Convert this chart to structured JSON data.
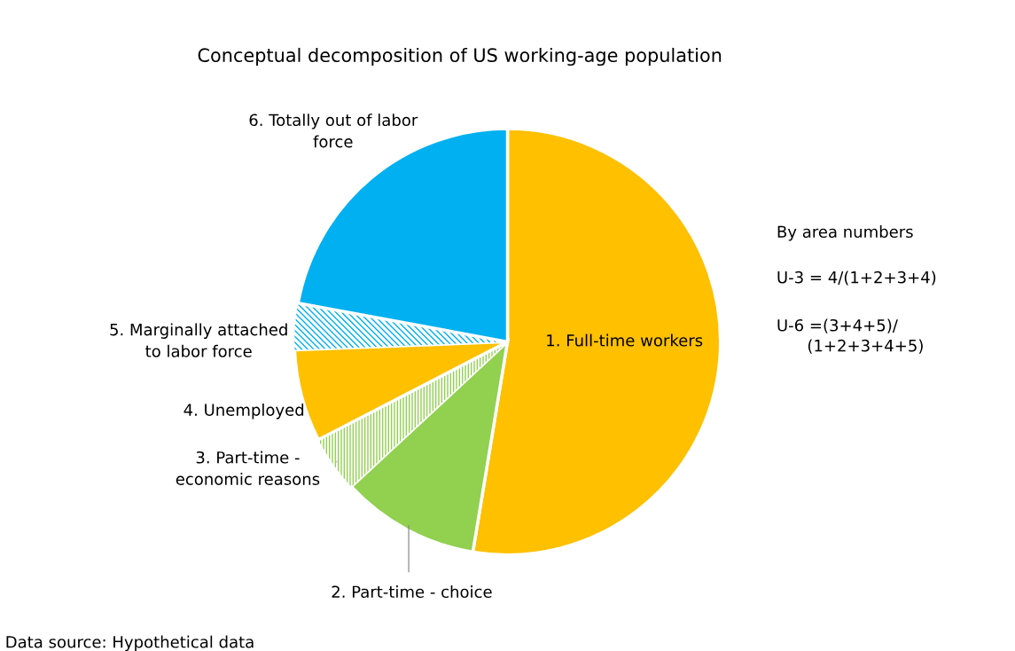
{
  "chart_data": {
    "type": "pie",
    "title": "Conceptual decomposition of US working-age population",
    "categories": [
      "1. Full-time workers",
      "2. Part-time - choice",
      "3. Part-time -\neconomic reasons",
      "4. Unemployed",
      "5. Marginally attached\nto labor force",
      "6. Totally out of labor\nforce"
    ],
    "values": [
      52.6,
      10.5,
      4.3,
      7.0,
      3.5,
      22.1
    ],
    "colors": [
      "#ffc000",
      "#92d050",
      "#92d050",
      "#ffc000",
      "#00b0f0",
      "#00b0f0"
    ],
    "annotations": [
      "By area numbers",
      "U-3 = 4/(1+2+3+4)",
      "U-6 =(3+4+5)/\n      (1+2+3+4+5)",
      "Data source: Hypothetical data"
    ]
  }
}
